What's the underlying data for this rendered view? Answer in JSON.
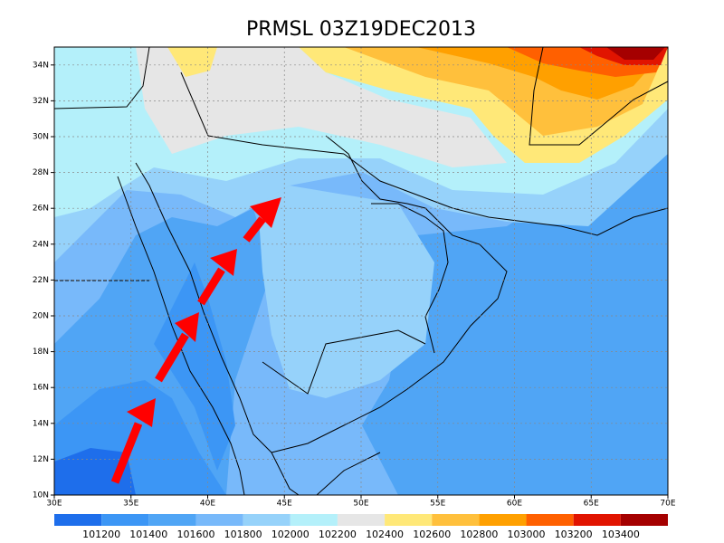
{
  "title": "PRMSL 03Z19DEC2013",
  "map": {
    "lon_ticks": [
      {
        "value": 30,
        "label": "30E"
      },
      {
        "value": 35,
        "label": "35E"
      },
      {
        "value": 40,
        "label": "40E"
      },
      {
        "value": 45,
        "label": "45E"
      },
      {
        "value": 50,
        "label": "50E"
      },
      {
        "value": 55,
        "label": "55E"
      },
      {
        "value": 60,
        "label": "60E"
      },
      {
        "value": 65,
        "label": "65E"
      },
      {
        "value": 70,
        "label": "70E"
      }
    ],
    "lat_ticks": [
      {
        "value": 10,
        "label": "10N"
      },
      {
        "value": 12,
        "label": "12N"
      },
      {
        "value": 14,
        "label": "14N"
      },
      {
        "value": 16,
        "label": "16N"
      },
      {
        "value": 18,
        "label": "18N"
      },
      {
        "value": 20,
        "label": "20N"
      },
      {
        "value": 22,
        "label": "22N"
      },
      {
        "value": 24,
        "label": "24N"
      },
      {
        "value": 26,
        "label": "26N"
      },
      {
        "value": 28,
        "label": "28N"
      },
      {
        "value": 30,
        "label": "30N"
      },
      {
        "value": 32,
        "label": "32N"
      },
      {
        "value": 34,
        "label": "34N"
      }
    ]
  },
  "colorbar": {
    "colors": [
      "#1e6eeb",
      "#3c96f5",
      "#50a5f5",
      "#78b9fa",
      "#96d2fa",
      "#b4f0fa",
      "#e6e6e6",
      "#ffe878",
      "#ffc03c",
      "#ffa000",
      "#ff6000",
      "#e11400",
      "#a50000"
    ],
    "levels": [
      101200,
      101400,
      101600,
      101800,
      102000,
      102200,
      102400,
      102600,
      102800,
      103000,
      103200,
      103400
    ]
  }
}
